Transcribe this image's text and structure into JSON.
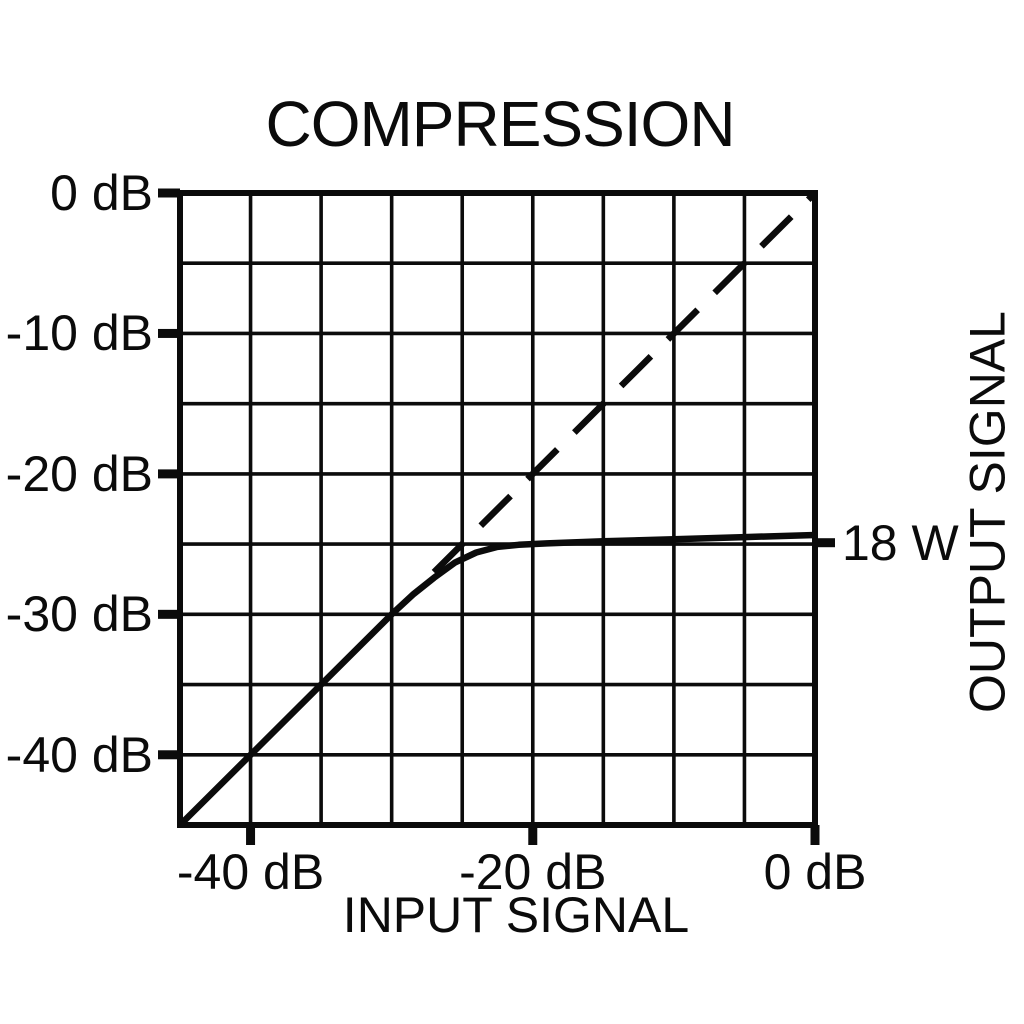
{
  "title": "COMPRESSION",
  "colors": {
    "ink": "#0b0b0b",
    "background": "#ffffff"
  },
  "chart_data": {
    "type": "line",
    "title": "COMPRESSION",
    "xlabel": "INPUT SIGNAL",
    "ylabel": "OUTPUT SIGNAL",
    "xlim": [
      -45,
      0
    ],
    "ylim": [
      -45,
      0
    ],
    "grid": "on",
    "grid_step_db": 5,
    "x_ticks": [
      {
        "value": -40,
        "label": "-40 dB"
      },
      {
        "value": -20,
        "label": "-20 dB"
      },
      {
        "value": 0,
        "label": "0 dB"
      }
    ],
    "y_ticks": [
      {
        "value": 0,
        "label": "0 dB"
      },
      {
        "value": -10,
        "label": "-10 dB"
      },
      {
        "value": -20,
        "label": "-20 dB"
      },
      {
        "value": -30,
        "label": "-30 dB"
      },
      {
        "value": -40,
        "label": "-40 dB"
      }
    ],
    "series": [
      {
        "name": "compressed-output-curve",
        "style": "solid",
        "points": [
          [
            -45,
            -45
          ],
          [
            -40,
            -40
          ],
          [
            -35,
            -35
          ],
          [
            -30,
            -30
          ],
          [
            -28.5,
            -28.6
          ],
          [
            -27,
            -27.4
          ],
          [
            -25.5,
            -26.3
          ],
          [
            -24,
            -25.6
          ],
          [
            -22.5,
            -25.2
          ],
          [
            -21,
            -25.05
          ],
          [
            -19,
            -24.95
          ],
          [
            -15,
            -24.8
          ],
          [
            -10,
            -24.65
          ],
          [
            -5,
            -24.5
          ],
          [
            0,
            -24.35
          ]
        ]
      },
      {
        "name": "unity-gain-reference",
        "style": "dashed",
        "points": [
          [
            -27,
            -27
          ],
          [
            0,
            0
          ]
        ]
      }
    ],
    "annotation": {
      "label": "18 W",
      "y_value": -24.9
    }
  }
}
